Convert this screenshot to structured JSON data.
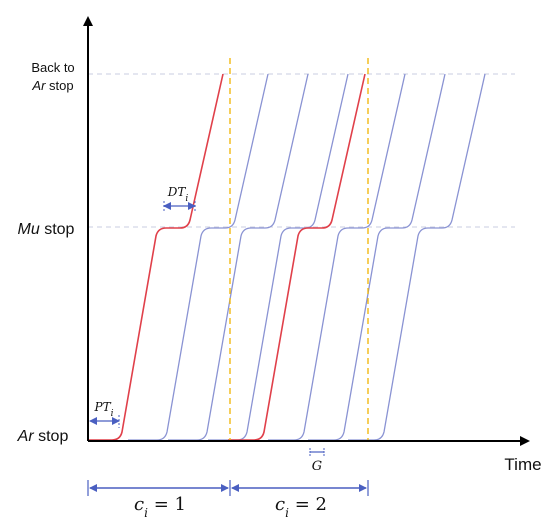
{
  "y_axis": {
    "top_label_line1": "Back to",
    "top_label_line2_italic": "Ar",
    "top_label_line2_rest": " stop",
    "mid_label_italic": "Mu",
    "mid_label_rest": " stop",
    "bottom_label_italic": "Ar",
    "bottom_label_rest": " stop"
  },
  "x_axis": {
    "label": "Time"
  },
  "annotations": {
    "dt": {
      "main": "DT",
      "sub": "i"
    },
    "pt": {
      "main": "PT",
      "sub": "i"
    },
    "gap": "G",
    "cycle1": {
      "var": "c",
      "sub": "i",
      "eq": " = 1"
    },
    "cycle2": {
      "var": "c",
      "sub": "i",
      "eq": " = 2"
    }
  },
  "colors": {
    "highlight_train": "#e0404a",
    "other_train": "#8a93d3",
    "cycle_boundary": "#f0b400",
    "stop_level": "#c8cce0",
    "annotation": "#4a5fc1",
    "axis": "#000000"
  },
  "trains": [
    {
      "color": "highlight"
    },
    {
      "color": "other"
    },
    {
      "color": "other"
    },
    {
      "color": "other"
    },
    {
      "color": "highlight"
    },
    {
      "color": "other"
    },
    {
      "color": "other"
    },
    {
      "color": "other"
    }
  ]
}
